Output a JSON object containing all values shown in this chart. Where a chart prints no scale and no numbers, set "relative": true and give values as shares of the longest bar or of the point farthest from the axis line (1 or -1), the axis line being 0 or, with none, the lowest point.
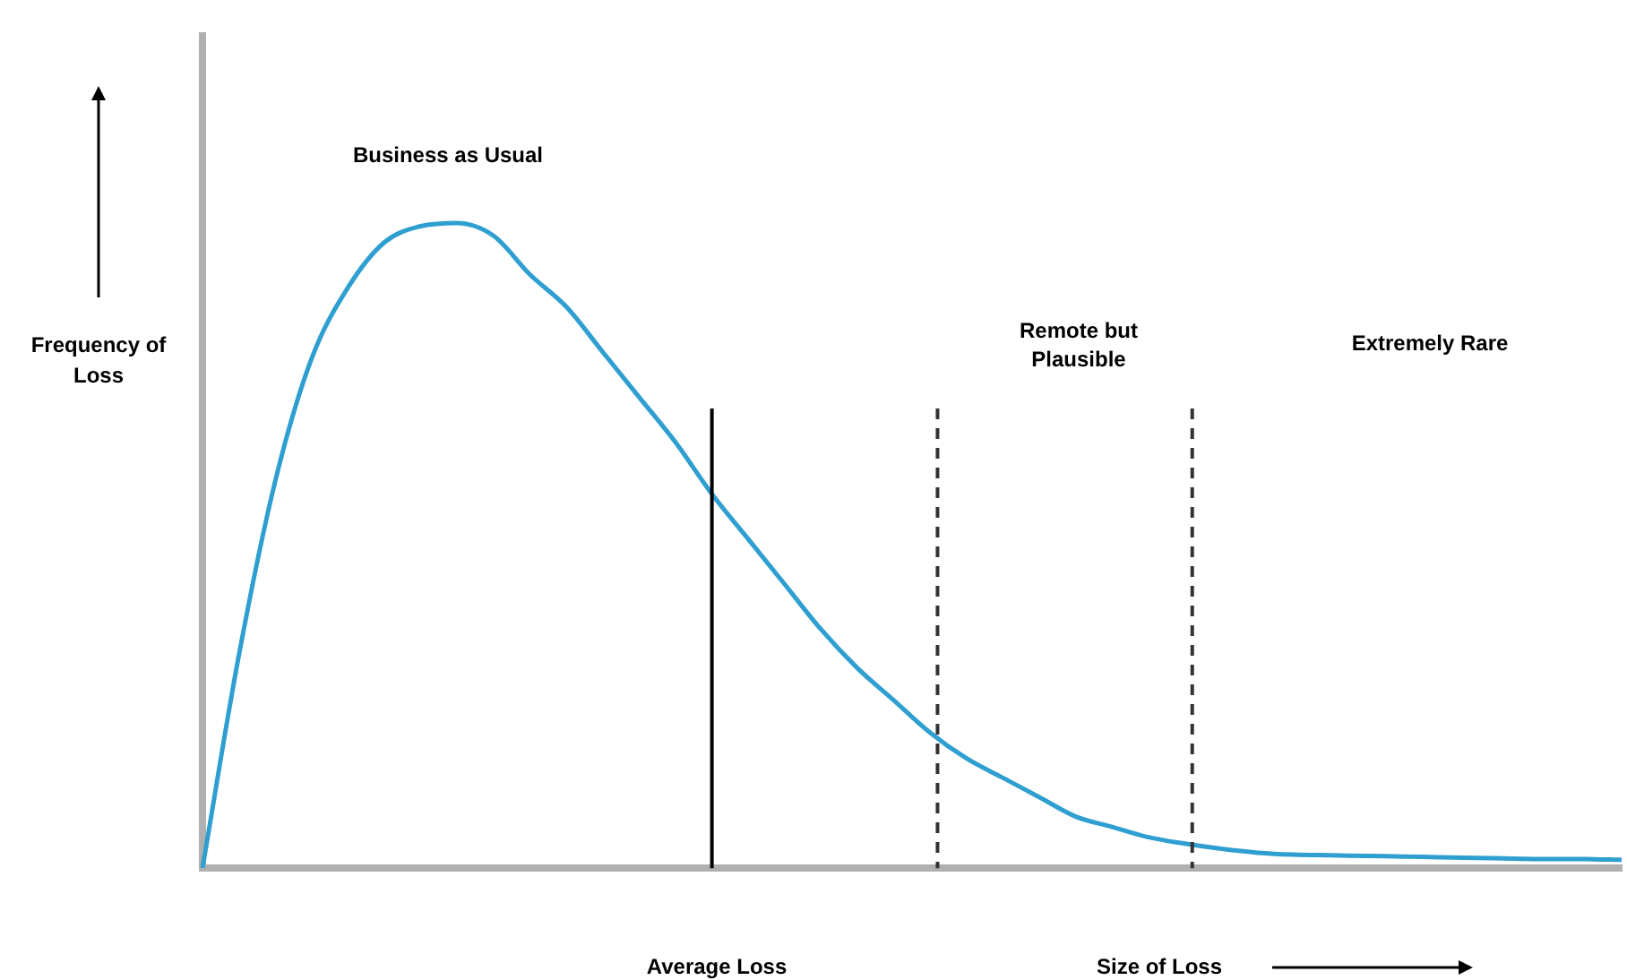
{
  "chart_data": {
    "type": "line",
    "relative": true,
    "xlabel": "Size of Loss",
    "ylabel": "Frequency of Loss",
    "categories": [
      null,
      null,
      null,
      null,
      null,
      null,
      null,
      null,
      null,
      null,
      null,
      null,
      null,
      null,
      null,
      null,
      null,
      null,
      null,
      null,
      null,
      null,
      null,
      null,
      null,
      null,
      null,
      null,
      null,
      null,
      null,
      null,
      null,
      null,
      null,
      null,
      null,
      null,
      null,
      null
    ],
    "series": [
      {
        "color": "#2e9fd0",
        "values": [
          0,
          0.33,
          0.6,
          0.79,
          0.9,
          0.97,
          0.995,
          1,
          0.98,
          0.92,
          0.87,
          0.8,
          0.73,
          0.66,
          0.58,
          0.51,
          0.44,
          0.37,
          0.31,
          0.26,
          0.21,
          0.17,
          0.14,
          0.11,
          0.08,
          0.064,
          0.048,
          0.038,
          0.03,
          0.024,
          0.021,
          0.02,
          0.019,
          0.018,
          0.017,
          0.016,
          0.015,
          0.014,
          0.014,
          0.013
        ]
      }
    ],
    "annotations": [
      "Business as Usual",
      "Remote but Plausible",
      "Extremely Rare",
      "Average Loss"
    ],
    "marker": "none",
    "line_style": "solid",
    "grid": false,
    "legend": false
  }
}
